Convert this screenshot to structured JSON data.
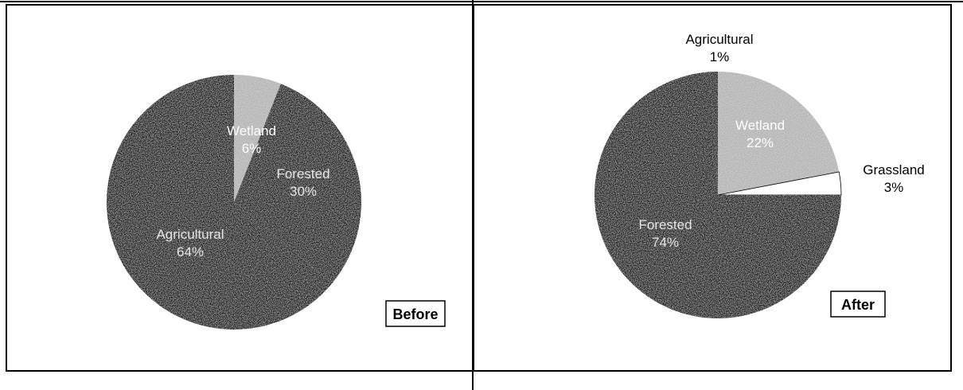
{
  "colors": {
    "dark": "#1e1e1e",
    "wetland": "#b4b4b4",
    "white": "#ffffff",
    "label_on_dark": "#e6e6e6",
    "label_on_light": "#ffffff",
    "label_outside": "#000000",
    "frame": "#000000"
  },
  "chart_data": [
    {
      "type": "pie",
      "title": "",
      "tag": "Before",
      "slices": [
        {
          "label": "Wetland",
          "percent_label": "6%",
          "value": 6,
          "fill": "wetland"
        },
        {
          "label": "Forested",
          "percent_label": "30%",
          "value": 30,
          "fill": "dark"
        },
        {
          "label": "Agricultural",
          "percent_label": "64%",
          "value": 64,
          "fill": "dark"
        }
      ]
    },
    {
      "type": "pie",
      "title": "",
      "tag": "After",
      "slices": [
        {
          "label": "Wetland",
          "percent_label": "22%",
          "value": 22,
          "fill": "wetland"
        },
        {
          "label": "Grassland",
          "percent_label": "3%",
          "value": 3,
          "fill": "white"
        },
        {
          "label": "Forested",
          "percent_label": "74%",
          "value": 74,
          "fill": "dark"
        },
        {
          "label": "Agricultural",
          "percent_label": "1%",
          "value": 1,
          "fill": "dark"
        }
      ]
    }
  ]
}
